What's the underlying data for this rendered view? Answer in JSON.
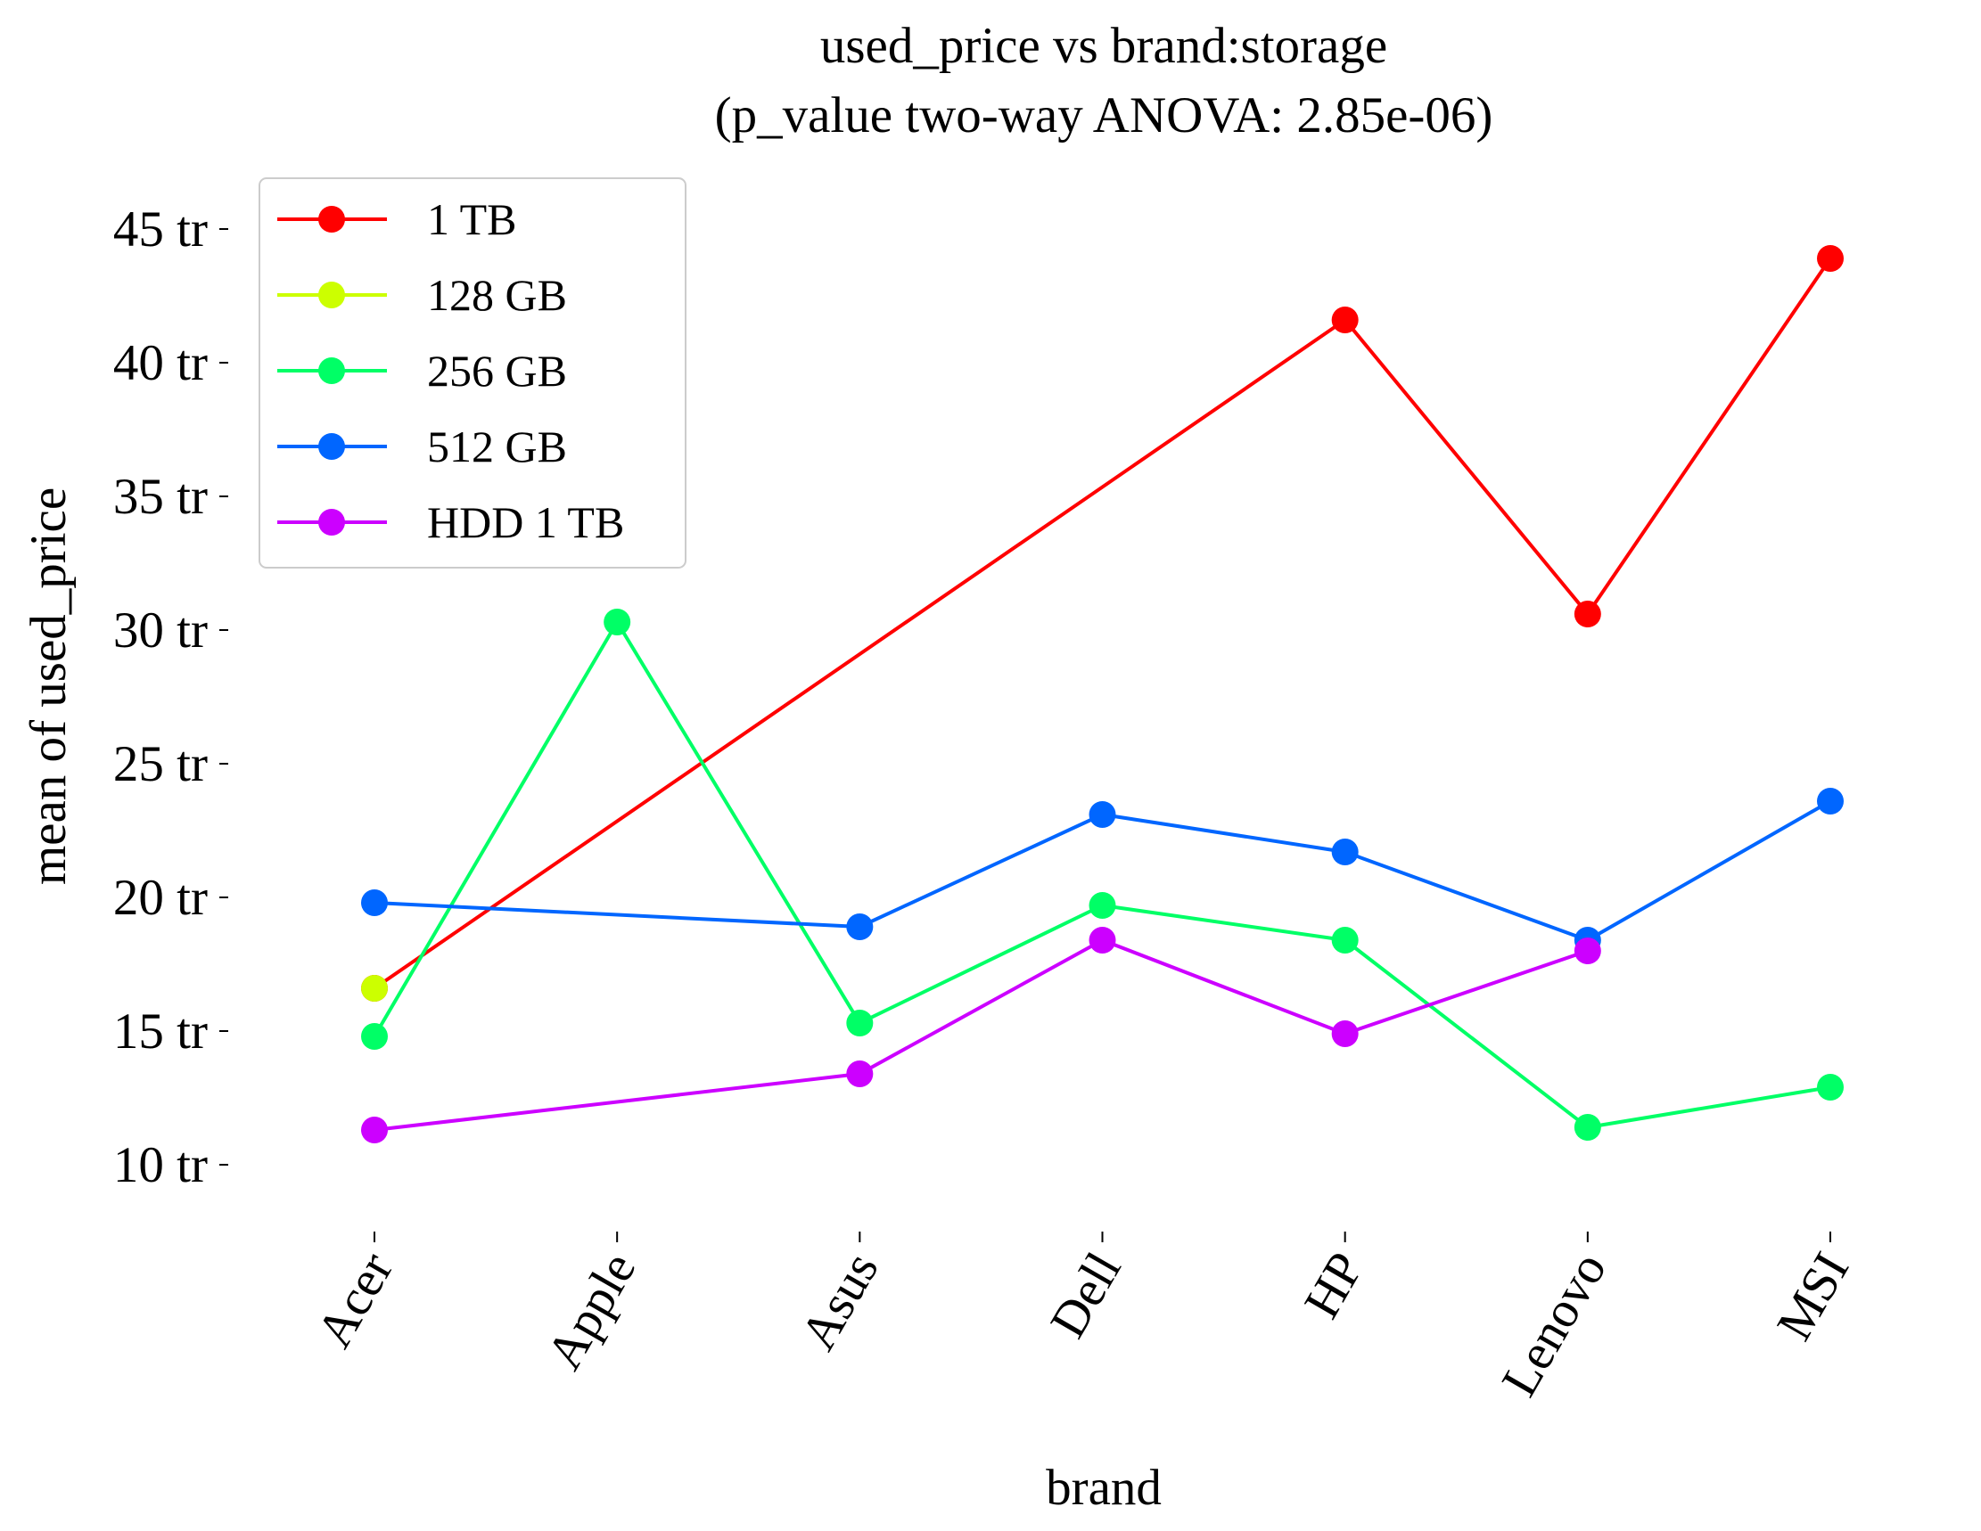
{
  "chart_data": {
    "type": "line",
    "title": "used_price vs brand:storage",
    "subtitle": "(p_value two-way ANOVA: 2.85e-06)",
    "xlabel": "brand",
    "ylabel": "mean of used_price",
    "categories": [
      "Acer",
      "Apple",
      "Asus",
      "Dell",
      "HP",
      "Lenovo",
      "MSI"
    ],
    "yticks": [
      10,
      15,
      20,
      25,
      30,
      35,
      40,
      45
    ],
    "ytick_labels": [
      "10 tr",
      "15 tr",
      "20 tr",
      "25 tr",
      "30 tr",
      "35 tr",
      "40 tr",
      "45 tr"
    ],
    "ylim": [
      7.9,
      46.9
    ],
    "grid": false,
    "legend_position": "top-left",
    "series": [
      {
        "name": "1 TB",
        "color": "#ff0000",
        "values": [
          16.6,
          null,
          null,
          null,
          41.6,
          30.6,
          43.9
        ]
      },
      {
        "name": "128 GB",
        "color": "#ccff00",
        "values": [
          16.6,
          null,
          null,
          null,
          null,
          null,
          null
        ]
      },
      {
        "name": "256 GB",
        "color": "#00ff66",
        "values": [
          14.8,
          30.3,
          15.3,
          19.7,
          18.4,
          11.4,
          12.9
        ]
      },
      {
        "name": "512 GB",
        "color": "#0066ff",
        "values": [
          19.8,
          null,
          18.9,
          23.1,
          21.7,
          18.4,
          23.6
        ]
      },
      {
        "name": "HDD 1 TB",
        "color": "#cc00ff",
        "values": [
          11.3,
          null,
          13.4,
          18.4,
          14.9,
          18.0,
          null
        ]
      }
    ]
  }
}
